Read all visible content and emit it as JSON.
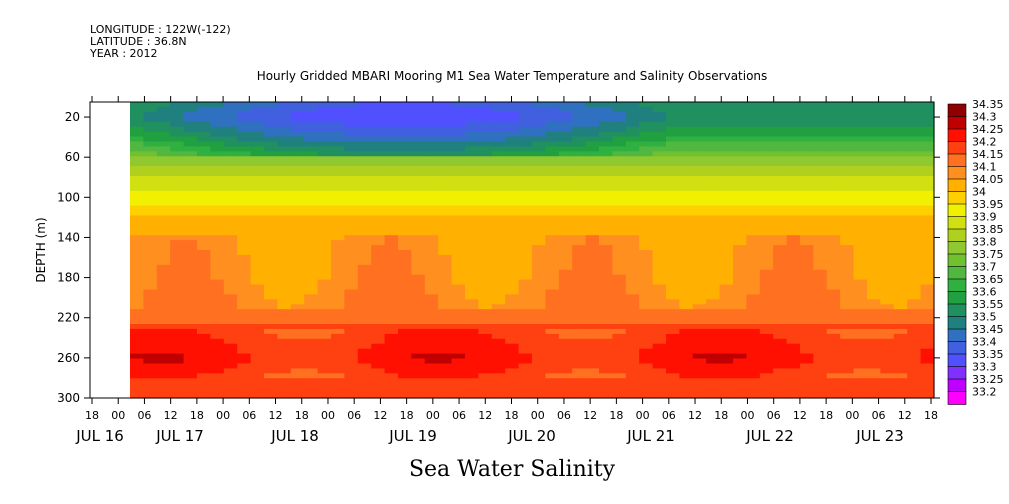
{
  "header": {
    "longitude": "LONGITUDE : 122W(-122)",
    "latitude": "LATITUDE : 36.8N",
    "year": "YEAR : 2012"
  },
  "chart_data": {
    "type": "heatmap",
    "title": "Hourly Gridded MBARI Mooring M1 Sea Water Temperature and Salinity Observations",
    "xlabel": "Sea Water Salinity",
    "ylabel": "DEPTH (m)",
    "y_ticks": [
      20,
      60,
      100,
      140,
      180,
      220,
      260,
      300
    ],
    "ylim": [
      5,
      300
    ],
    "y_reversed": true,
    "x_hour_ticks": [
      "18",
      "00",
      "06",
      "12",
      "18",
      "00",
      "06",
      "12",
      "18",
      "00",
      "06",
      "12",
      "18",
      "00",
      "06",
      "12",
      "18",
      "00",
      "06",
      "12",
      "18",
      "00",
      "06",
      "12",
      "18",
      "00",
      "06",
      "12",
      "18",
      "00",
      "06",
      "12",
      "18"
    ],
    "x_day_ticks": [
      "JUL 16",
      "JUL 17",
      "JUL 18",
      "JUL 19",
      "JUL 20",
      "JUL 21",
      "JUL 22",
      "JUL 23"
    ],
    "xlim": [
      "JUL 16 18:00",
      "JUL 23 21:00"
    ],
    "data_start": "JUL 17 02:00",
    "colorbar_levels": [
      33.2,
      33.25,
      33.3,
      33.35,
      33.4,
      33.45,
      33.5,
      33.55,
      33.6,
      33.65,
      33.7,
      33.75,
      33.8,
      33.85,
      33.9,
      33.95,
      34,
      34.05,
      34.1,
      34.15,
      34.2,
      34.25,
      34.3,
      34.35
    ],
    "colorbar_labels": [
      "34.35",
      "34.3",
      "34.25",
      "34.2",
      "34.15",
      "34.1",
      "34.05",
      "34",
      "33.95",
      "33.9",
      "33.85",
      "33.8",
      "33.75",
      "33.7",
      "33.65",
      "33.6",
      "33.55",
      "33.5",
      "33.45",
      "33.4",
      "33.35",
      "33.3",
      "33.25",
      "33.2"
    ],
    "colorbar_colors": [
      "#ff00ff",
      "#c000ff",
      "#8030ff",
      "#5050ff",
      "#4060e0",
      "#3070c0",
      "#208080",
      "#209060",
      "#20a040",
      "#30b040",
      "#50b840",
      "#70c030",
      "#90c830",
      "#b0d020",
      "#d0e010",
      "#f0f000",
      "#ffd000",
      "#ffb000",
      "#ff9020",
      "#ff7020",
      "#ff4010",
      "#ff1000",
      "#c00000",
      "#900000"
    ],
    "depth_profile": [
      {
        "depth": 5,
        "value": 33.6
      },
      {
        "depth": 20,
        "value": 33.55
      },
      {
        "depth": 40,
        "value": 33.65
      },
      {
        "depth": 60,
        "value": 33.8
      },
      {
        "depth": 80,
        "value": 33.9
      },
      {
        "depth": 100,
        "value": 33.97
      },
      {
        "depth": 120,
        "value": 34.05
      },
      {
        "depth": 140,
        "value": 34.1
      },
      {
        "depth": 180,
        "value": 34.12
      },
      {
        "depth": 210,
        "value": 34.15
      },
      {
        "depth": 230,
        "value": 34.22
      },
      {
        "depth": 260,
        "value": 34.27
      },
      {
        "depth": 280,
        "value": 34.22
      },
      {
        "depth": 300,
        "value": 34.2
      }
    ]
  }
}
